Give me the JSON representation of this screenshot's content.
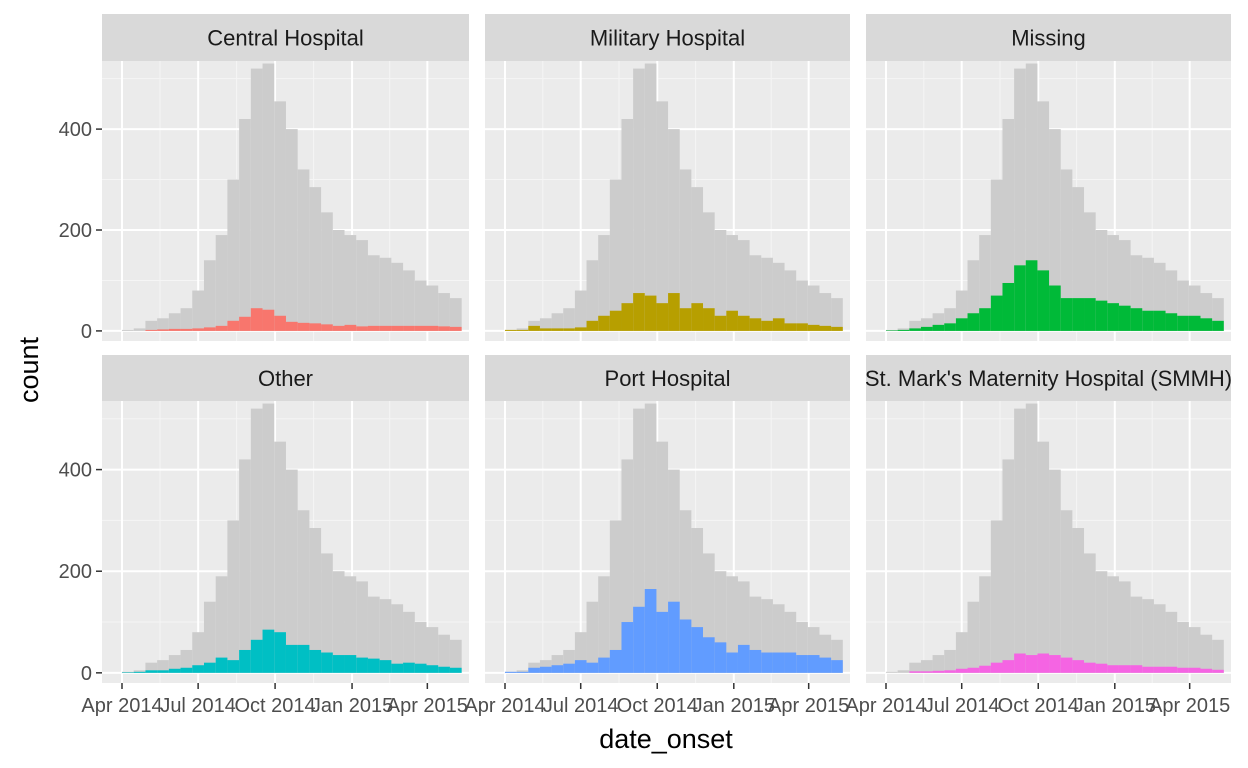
{
  "chart_data": {
    "type": "bar",
    "xlabel": "date_onset",
    "ylabel": "count",
    "ylim": [
      -20,
      535
    ],
    "yticks": [
      0,
      200,
      400
    ],
    "x_tick_labels": [
      "Apr 2014",
      "Jul 2014",
      "Oct 2014",
      "Jan 2015",
      "Apr 2015"
    ],
    "bin_start_dates": [
      "2014-04-01",
      "2014-04-15",
      "2014-04-29",
      "2014-05-13",
      "2014-05-27",
      "2014-06-10",
      "2014-06-24",
      "2014-07-08",
      "2014-07-22",
      "2014-08-05",
      "2014-08-19",
      "2014-09-02",
      "2014-09-16",
      "2014-09-30",
      "2014-10-14",
      "2014-10-28",
      "2014-11-11",
      "2014-11-25",
      "2014-12-09",
      "2014-12-23",
      "2015-01-06",
      "2015-01-20",
      "2015-02-03",
      "2015-02-17",
      "2015-03-03",
      "2015-03-17",
      "2015-03-31",
      "2015-04-14",
      "2015-04-28"
    ],
    "background_counts": [
      2,
      5,
      20,
      25,
      35,
      45,
      80,
      140,
      190,
      300,
      420,
      520,
      530,
      455,
      400,
      320,
      285,
      235,
      200,
      190,
      180,
      150,
      145,
      135,
      120,
      100,
      90,
      75,
      65
    ],
    "grid": true,
    "legend": "none",
    "background_color": "#cccccc",
    "panel_color": "#ebebeb",
    "strip_color": "#d9d9d9",
    "series": [
      {
        "name": "Central Hospital",
        "color": "#F8766D",
        "values": [
          0,
          0,
          2,
          3,
          4,
          4,
          5,
          7,
          10,
          20,
          28,
          45,
          42,
          30,
          18,
          16,
          15,
          13,
          10,
          12,
          9,
          10,
          10,
          10,
          10,
          10,
          10,
          9,
          8
        ]
      },
      {
        "name": "Military Hospital",
        "color": "#B79F00",
        "values": [
          2,
          2,
          10,
          5,
          5,
          5,
          7,
          20,
          30,
          40,
          55,
          75,
          70,
          55,
          75,
          45,
          55,
          45,
          30,
          40,
          30,
          25,
          20,
          25,
          15,
          15,
          12,
          10,
          8
        ]
      },
      {
        "name": "Missing",
        "color": "#00BA38",
        "values": [
          1,
          2,
          5,
          8,
          12,
          15,
          25,
          35,
          45,
          70,
          95,
          130,
          140,
          120,
          90,
          65,
          65,
          65,
          60,
          55,
          50,
          45,
          40,
          40,
          35,
          30,
          30,
          25,
          20
        ]
      },
      {
        "name": "Other",
        "color": "#00BFC4",
        "values": [
          1,
          2,
          5,
          5,
          8,
          10,
          15,
          20,
          30,
          25,
          45,
          65,
          85,
          80,
          55,
          55,
          45,
          40,
          35,
          35,
          30,
          28,
          25,
          18,
          20,
          18,
          15,
          12,
          10
        ]
      },
      {
        "name": "Port Hospital",
        "color": "#619CFF",
        "values": [
          2,
          2,
          10,
          12,
          15,
          18,
          25,
          20,
          30,
          45,
          100,
          130,
          165,
          120,
          140,
          105,
          90,
          70,
          60,
          40,
          55,
          45,
          40,
          40,
          40,
          35,
          35,
          30,
          25
        ]
      },
      {
        "name": "St. Mark's Maternity Hospital (SMMH)",
        "color": "#F564E3",
        "values": [
          0,
          0,
          3,
          3,
          4,
          5,
          8,
          10,
          14,
          20,
          25,
          38,
          35,
          38,
          35,
          30,
          25,
          20,
          18,
          15,
          15,
          15,
          12,
          12,
          12,
          10,
          10,
          8,
          6
        ]
      }
    ]
  }
}
